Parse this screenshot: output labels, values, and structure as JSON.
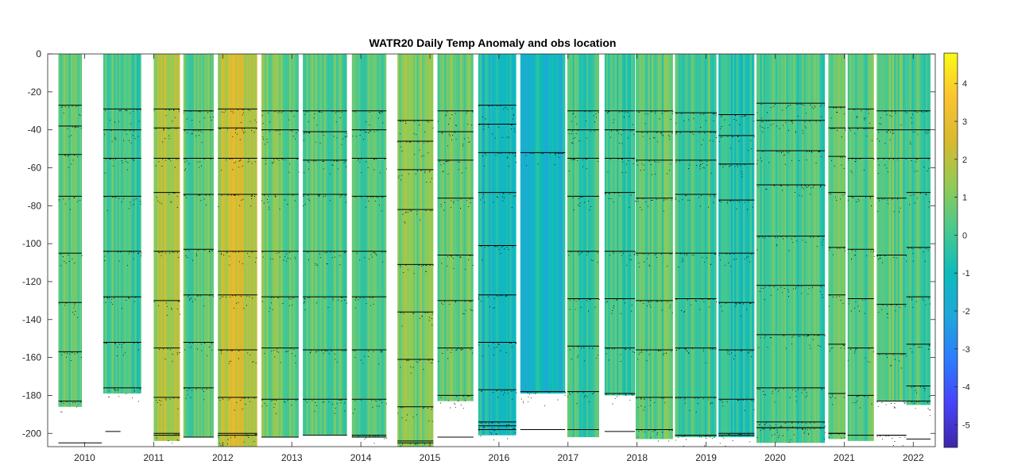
{
  "chart_data": {
    "type": "heatmap",
    "title": "WATR20 Daily Temp Anomaly and obs location",
    "xlabel": "",
    "ylabel": "",
    "xlim": [
      2009.6,
      2022.3
    ],
    "ylim": [
      -207,
      0
    ],
    "x_ticks": [
      "2010",
      "2011",
      "2012",
      "2013",
      "2014",
      "2015",
      "2016",
      "2017",
      "2018",
      "2019",
      "2020",
      "2021",
      "2022"
    ],
    "y_ticks": [
      "0",
      "-20",
      "-40",
      "-60",
      "-80",
      "-100",
      "-120",
      "-140",
      "-160",
      "-180",
      "-200"
    ],
    "colorbar": {
      "min": -5.6,
      "max": 4.8,
      "ticks": [
        "4",
        "3",
        "2",
        "1",
        "0",
        "-1",
        "-2",
        "-3",
        "-4",
        "-5"
      ],
      "colormap": [
        "#3e26a8",
        "#4743f8",
        "#2c7bfe",
        "#1fa7db",
        "#0dbbbb",
        "#4bc98d",
        "#93ca55",
        "#d8ba2f",
        "#fbc331",
        "#f9fb14"
      ]
    },
    "segments": [
      {
        "start": 2009.62,
        "end": 2009.96,
        "bottom": -186,
        "anomaly": 0.3,
        "obs_depths": [
          -27,
          -38,
          -53,
          -75,
          -105,
          -131,
          -157,
          -183
        ],
        "base_line": {
          "depth": -205,
          "start": 2009.62,
          "end": 2010.25
        }
      },
      {
        "start": 2010.27,
        "end": 2010.82,
        "bottom": -179,
        "anomaly": 0.1,
        "obs_depths": [
          -29,
          -40,
          -55,
          -75,
          -104,
          -128,
          -152,
          -176
        ],
        "base_line": {
          "depth": -199,
          "start": 2010.3,
          "end": 2010.52
        }
      },
      {
        "start": 2011.0,
        "end": 2011.38,
        "bottom": -204,
        "anomaly": 1.8,
        "obs_depths": [
          -29,
          -39,
          -55,
          -73,
          -104,
          -130,
          -155,
          -181,
          -200
        ],
        "base_line": {
          "depth": -201,
          "start": 2011.0,
          "end": 2011.38
        }
      },
      {
        "start": 2011.43,
        "end": 2011.87,
        "bottom": -202,
        "anomaly": 0.5,
        "obs_depths": [
          -30,
          -40,
          -55,
          -74,
          -103,
          -127,
          -152,
          -176
        ],
        "base_line": {
          "depth": -202,
          "start": 2011.43,
          "end": 2011.87
        }
      },
      {
        "start": 2011.93,
        "end": 2012.5,
        "bottom": -207,
        "anomaly": 2.0,
        "obs_depths": [
          -29,
          -39,
          -55,
          -74,
          -104,
          -127,
          -156,
          -181,
          -200
        ],
        "base_line": {
          "depth": -201,
          "start": 2011.93,
          "end": 2012.5
        }
      },
      {
        "start": 2012.56,
        "end": 2013.1,
        "bottom": -202,
        "anomaly": 0.8,
        "obs_depths": [
          -30,
          -40,
          -55,
          -74,
          -104,
          -128,
          -155,
          -182
        ],
        "base_line": {
          "depth": -202,
          "start": 2012.56,
          "end": 2013.1
        }
      },
      {
        "start": 2013.16,
        "end": 2013.8,
        "bottom": -201,
        "anomaly": 0.4,
        "obs_depths": [
          -30,
          -41,
          -56,
          -74,
          -104,
          -128,
          -156,
          -182
        ],
        "base_line": {
          "depth": -201,
          "start": 2013.16,
          "end": 2013.8
        }
      },
      {
        "start": 2013.87,
        "end": 2014.37,
        "bottom": -202,
        "anomaly": 0.2,
        "obs_depths": [
          -30,
          -40,
          -55,
          -75,
          -104,
          -128,
          -156,
          -182,
          -201
        ],
        "base_line": {
          "depth": -202,
          "start": 2013.87,
          "end": 2014.37
        }
      },
      {
        "start": 2014.53,
        "end": 2015.05,
        "bottom": -207,
        "anomaly": 0.9,
        "obs_depths": [
          -35,
          -46,
          -61,
          -82,
          -111,
          -136,
          -161,
          -186,
          -205
        ],
        "base_line": {
          "depth": -204,
          "start": 2014.53,
          "end": 2015.05
        }
      },
      {
        "start": 2015.11,
        "end": 2015.63,
        "bottom": -183,
        "anomaly": 0.6,
        "obs_depths": [
          -30,
          -41,
          -56,
          -76,
          -106,
          -130,
          -155,
          -180
        ],
        "base_line": {
          "depth": -202,
          "start": 2015.11,
          "end": 2015.63
        }
      },
      {
        "start": 2015.7,
        "end": 2016.25,
        "bottom": -201,
        "anomaly": -0.9,
        "obs_depths": [
          -27,
          -37,
          -52,
          -73,
          -101,
          -127,
          -152,
          -177,
          -194,
          -196
        ],
        "base_line": {
          "depth": -198,
          "start": 2015.7,
          "end": 2016.25
        }
      },
      {
        "start": 2016.31,
        "end": 2016.96,
        "bottom": -179,
        "anomaly": -1.2,
        "obs_depths": [
          -52,
          -178
        ],
        "base_line": {
          "depth": -198,
          "start": 2016.31,
          "end": 2016.96
        }
      },
      {
        "start": 2016.99,
        "end": 2017.45,
        "bottom": -202,
        "anomaly": 0.0,
        "obs_depths": [
          -30,
          -40,
          -55,
          -75,
          -104,
          -129,
          -154,
          -178
        ],
        "base_line": {
          "depth": -198,
          "start": 2016.99,
          "end": 2017.45
        }
      },
      {
        "start": 2017.53,
        "end": 2017.97,
        "bottom": -180,
        "anomaly": -0.2,
        "obs_depths": [
          -30,
          -40,
          -55,
          -73,
          -104,
          -129,
          -155,
          -179
        ],
        "base_line": {
          "depth": -199,
          "start": 2017.53,
          "end": 2017.97
        }
      },
      {
        "start": 2017.98,
        "end": 2018.52,
        "bottom": -203,
        "anomaly": 0.4,
        "obs_depths": [
          -30,
          -41,
          -56,
          -76,
          -105,
          -130,
          -156,
          -181,
          -198
        ],
        "base_line": {
          "depth": -198,
          "start": 2017.98,
          "end": 2018.52
        }
      },
      {
        "start": 2018.55,
        "end": 2019.15,
        "bottom": -202,
        "anomaly": 0.3,
        "obs_depths": [
          -31,
          -41,
          -56,
          -74,
          -105,
          -129,
          -155,
          -181,
          -201
        ],
        "base_line": {
          "depth": -201,
          "start": 2018.55,
          "end": 2019.15
        }
      },
      {
        "start": 2019.18,
        "end": 2019.7,
        "bottom": -202,
        "anomaly": -0.6,
        "obs_depths": [
          -32,
          -43,
          -58,
          -77,
          -105,
          -131,
          -156,
          -182,
          -200
        ],
        "base_line": {
          "depth": -201,
          "start": 2019.18,
          "end": 2019.7
        }
      },
      {
        "start": 2019.73,
        "end": 2020.72,
        "bottom": -205,
        "anomaly": 0.1,
        "obs_depths": [
          -26,
          -35,
          -51,
          -69,
          -96,
          -122,
          -148,
          -176,
          -194,
          -197
        ],
        "base_line": {
          "depth": -197,
          "start": 2019.73,
          "end": 2020.72
        }
      },
      {
        "start": 2020.77,
        "end": 2021.02,
        "bottom": -203,
        "anomaly": 0.5,
        "obs_depths": [
          -28,
          -39,
          -54,
          -73,
          -102,
          -127,
          -153,
          -179,
          -200
        ],
        "base_line": {
          "depth": -200,
          "start": 2020.77,
          "end": 2021.02
        }
      },
      {
        "start": 2021.05,
        "end": 2021.43,
        "bottom": -204,
        "anomaly": 0.3,
        "obs_depths": [
          -29,
          -39,
          -55,
          -75,
          -103,
          -129,
          -155,
          -180
        ],
        "base_line": {
          "depth": -201,
          "start": 2021.05,
          "end": 2021.43
        }
      },
      {
        "start": 2021.47,
        "end": 2021.9,
        "bottom": -183,
        "anomaly": 0.4,
        "obs_depths": [
          -30,
          -40,
          -55,
          -76,
          -106,
          -132,
          -158,
          -183,
          -201
        ],
        "base_line": {
          "depth": -201,
          "start": 2021.47,
          "end": 2021.9
        }
      },
      {
        "start": 2021.9,
        "end": 2022.25,
        "bottom": -185,
        "anomaly": 0.2,
        "obs_depths": [
          -30,
          -40,
          -55,
          -73,
          -102,
          -128,
          -153,
          -175,
          -183
        ],
        "base_line": {
          "depth": -203,
          "start": 2021.9,
          "end": 2022.25
        }
      }
    ]
  }
}
